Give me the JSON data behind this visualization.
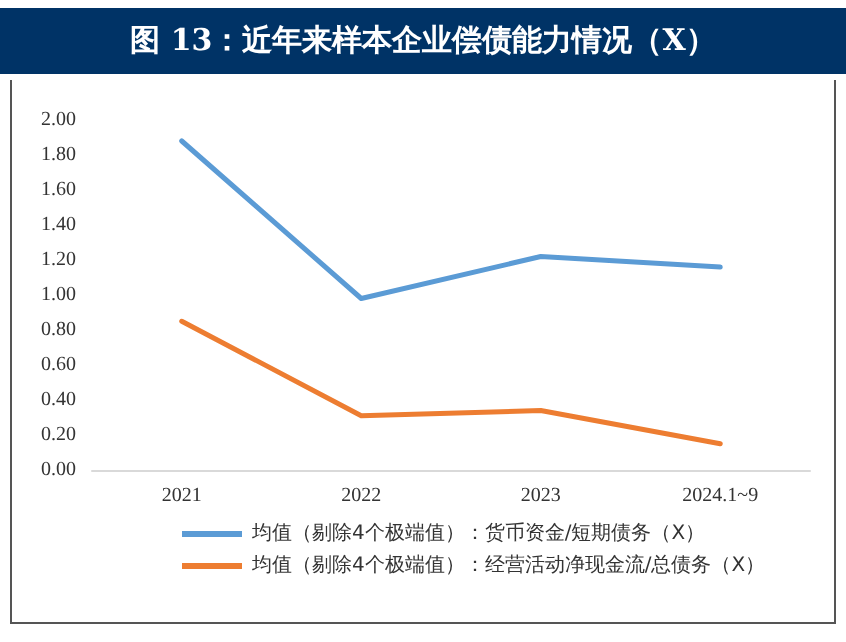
{
  "chart_data": {
    "type": "line",
    "title": "图 13：近年来样本企业偿债能力情况（X）",
    "categories": [
      "2021",
      "2022",
      "2023",
      "2024.1~9"
    ],
    "series": [
      {
        "name": "均值（剔除4个极端值）：货币资金/短期债务（X）",
        "color": "#5b9bd5",
        "values": [
          1.88,
          0.98,
          1.22,
          1.16
        ]
      },
      {
        "name": "均值（剔除4个极端值）：经营活动净现金流/总债务（X）",
        "color": "#ed7d31",
        "values": [
          0.85,
          0.31,
          0.34,
          0.15
        ]
      }
    ],
    "ylim": [
      0,
      2
    ],
    "yticks": [
      {
        "value": 0,
        "label": "0.00"
      },
      {
        "value": 0.2,
        "label": "0.20"
      },
      {
        "value": 0.4,
        "label": "0.40"
      },
      {
        "value": 0.6,
        "label": "0.60"
      },
      {
        "value": 0.8,
        "label": "0.80"
      },
      {
        "value": 1,
        "label": "1.00"
      },
      {
        "value": 1.2,
        "label": "1.20"
      },
      {
        "value": 1.4,
        "label": "1.40"
      },
      {
        "value": 1.6,
        "label": "1.60"
      },
      {
        "value": 1.8,
        "label": "1.80"
      },
      {
        "value": 2,
        "label": "2.00"
      }
    ],
    "grid": false,
    "legend": "bottom",
    "marker": "none",
    "line_style": "solid"
  }
}
